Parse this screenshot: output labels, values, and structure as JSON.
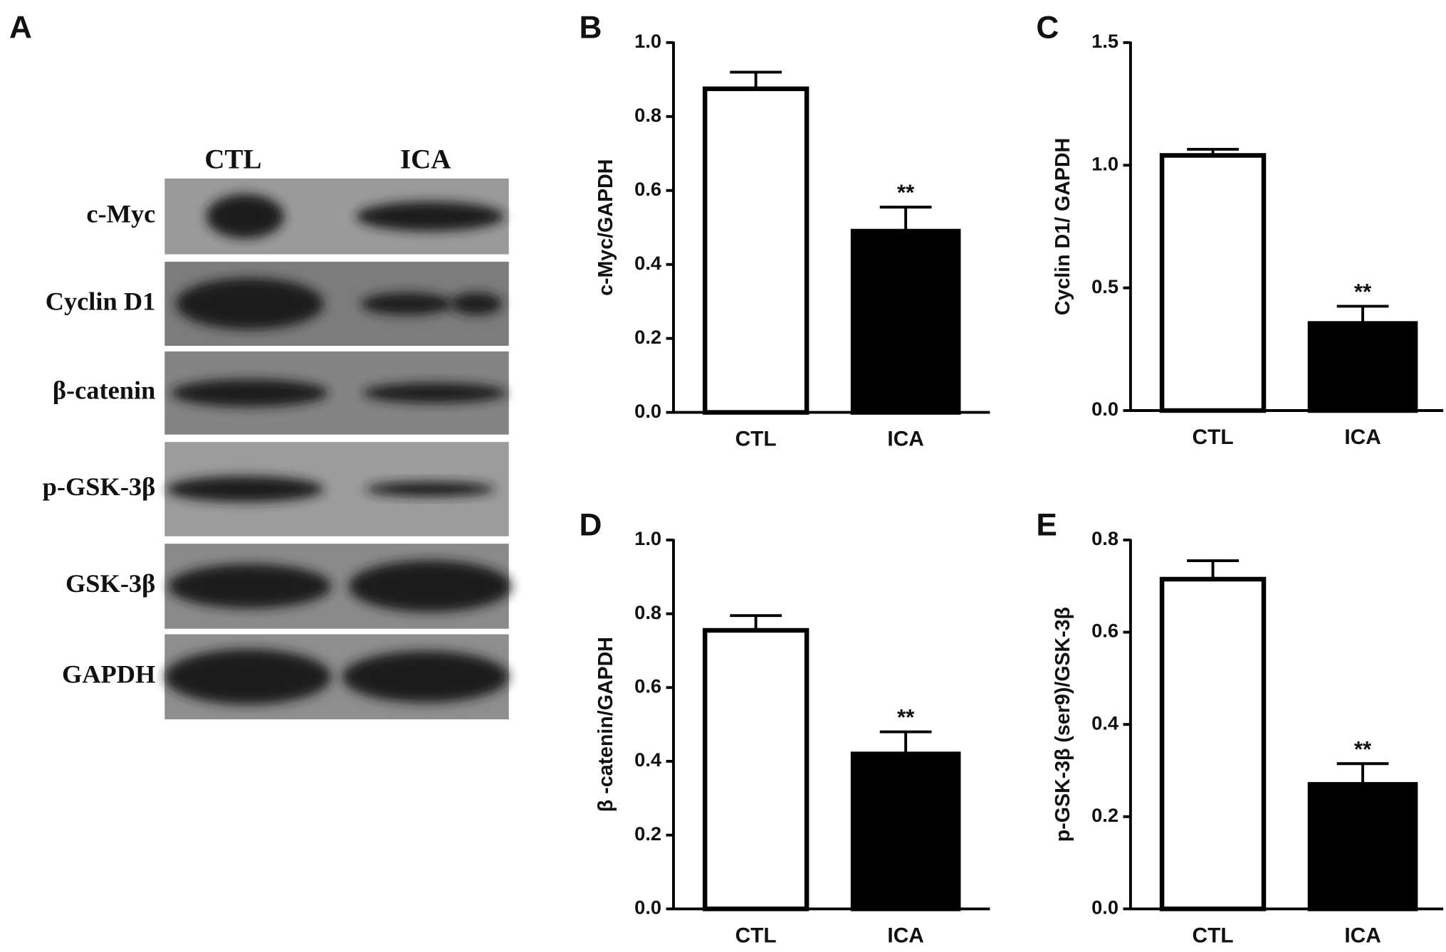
{
  "blot": {
    "panel": "A",
    "lanes": [
      "CTL",
      "ICA"
    ],
    "rows": [
      "c-Myc",
      "Cyclin D1",
      "β-catenin",
      "p-GSK-3β",
      "GSK-3β",
      "GAPDH"
    ]
  },
  "chart_data": [
    {
      "type": "bar",
      "panel": "B",
      "ylabel": "c-Myc/GAPDH",
      "categories": [
        "CTL",
        "ICA"
      ],
      "values": [
        0.875,
        0.49
      ],
      "errors": [
        0.045,
        0.065
      ],
      "colors": [
        "#ffffff",
        "#000000"
      ],
      "annotation": "**",
      "ylim": [
        0,
        1
      ],
      "yticks": [
        {
          "value": 0,
          "label": "0.0"
        },
        0.2,
        0.4,
        0.6,
        0.8,
        {
          "value": 1,
          "label": "1.0"
        }
      ]
    },
    {
      "type": "bar",
      "panel": "C",
      "ylabel": "Cyclin D1/ GAPDH",
      "categories": [
        "CTL",
        "ICA"
      ],
      "values": [
        1.04,
        0.355
      ],
      "errors": [
        0.025,
        0.07
      ],
      "colors": [
        "#ffffff",
        "#000000"
      ],
      "annotation": "**",
      "ylim": [
        0,
        1.5
      ],
      "yticks": [
        {
          "value": 0,
          "label": "0.0"
        },
        0.5,
        {
          "value": 1,
          "label": "1.0"
        },
        1.5
      ]
    },
    {
      "type": "bar",
      "panel": "D",
      "ylabel": "β -catenin/GAPDH",
      "categories": [
        "CTL",
        "ICA"
      ],
      "values": [
        0.755,
        0.42
      ],
      "errors": [
        0.04,
        0.06
      ],
      "colors": [
        "#ffffff",
        "#000000"
      ],
      "annotation": "**",
      "ylim": [
        0,
        1
      ],
      "yticks": [
        {
          "value": 0,
          "label": "0.0"
        },
        0.2,
        0.4,
        0.6,
        0.8,
        {
          "value": 1,
          "label": "1.0"
        }
      ]
    },
    {
      "type": "bar",
      "panel": "E",
      "ylabel": "p-GSK-3β (ser9)/GSK-3β",
      "categories": [
        "CTL",
        "ICA"
      ],
      "values": [
        0.715,
        0.27
      ],
      "errors": [
        0.04,
        0.045
      ],
      "colors": [
        "#ffffff",
        "#000000"
      ],
      "annotation": "**",
      "ylim": [
        0,
        0.8
      ],
      "yticks": [
        {
          "value": 0,
          "label": "0.0"
        },
        0.2,
        0.4,
        0.6,
        0.8
      ]
    }
  ]
}
